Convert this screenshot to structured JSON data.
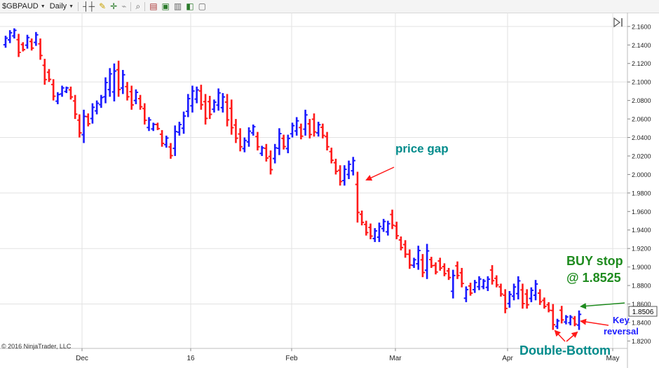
{
  "toolbar": {
    "instrument": "$GBPAUD",
    "interval": "Daily",
    "icons": [
      "bar-style-icon",
      "pencil-icon",
      "crosshair-icon",
      "magnet-icon",
      "zoom-icon",
      "properties-icon",
      "strategy-icon",
      "indicator-icon",
      "chart-trader-icon",
      "data-box-icon"
    ]
  },
  "copyright": "© 2016 NinjaTrader, LLC",
  "chart_data": {
    "type": "ohlc",
    "symbol": "$GBPAUD",
    "interval": "Daily",
    "x_tick_labels": [
      "Dec",
      "16",
      "Feb",
      "Mar",
      "Apr",
      "May"
    ],
    "y_tick_labels": [
      "2.1600",
      "2.1400",
      "2.1200",
      "2.1000",
      "2.0800",
      "2.0600",
      "2.0400",
      "2.0200",
      "2.0000",
      "1.9800",
      "1.9600",
      "1.9400",
      "1.9200",
      "1.9000",
      "1.8800",
      "1.8600",
      "1.8400",
      "1.8200"
    ],
    "ylim": [
      1.812,
      2.175
    ],
    "last_price_label": "1.8506",
    "colors": {
      "up": "#1a1aff",
      "down": "#ff1a1a",
      "grid": "#e2e2e2",
      "price_gap": "#008b8b",
      "buy_stop": "#1e8b1e",
      "key_reversal": "#1a1aff",
      "double_bottom": "#008b8b",
      "arrow_red": "#ff1a1a",
      "arrow_green": "#1e8b1e"
    },
    "annotations": [
      {
        "id": "price-gap",
        "text": "price gap"
      },
      {
        "id": "buy-stop",
        "lines": [
          "BUY stop",
          "@ 1.8525"
        ]
      },
      {
        "id": "key-reversal",
        "lines": [
          "Key",
          "reversal"
        ]
      },
      {
        "id": "double-bottom",
        "text": "Double-Bottom"
      }
    ],
    "bars": [
      {
        "h": 2.15,
        "l": 2.137,
        "dir": "up"
      },
      {
        "h": 2.156,
        "l": 2.142,
        "dir": "up"
      },
      {
        "h": 2.158,
        "l": 2.147,
        "dir": "up"
      },
      {
        "h": 2.152,
        "l": 2.127,
        "dir": "down"
      },
      {
        "h": 2.143,
        "l": 2.133,
        "dir": "down"
      },
      {
        "h": 2.151,
        "l": 2.136,
        "dir": "up"
      },
      {
        "h": 2.147,
        "l": 2.134,
        "dir": "down"
      },
      {
        "h": 2.154,
        "l": 2.139,
        "dir": "up"
      },
      {
        "h": 2.147,
        "l": 2.124,
        "dir": "down"
      },
      {
        "h": 2.125,
        "l": 2.097,
        "dir": "down"
      },
      {
        "h": 2.114,
        "l": 2.1,
        "dir": "down"
      },
      {
        "h": 2.103,
        "l": 2.08,
        "dir": "down"
      },
      {
        "h": 2.089,
        "l": 2.076,
        "dir": "up"
      },
      {
        "h": 2.096,
        "l": 2.084,
        "dir": "up"
      },
      {
        "h": 2.095,
        "l": 2.088,
        "dir": "up"
      },
      {
        "h": 2.095,
        "l": 2.081,
        "dir": "down"
      },
      {
        "h": 2.086,
        "l": 2.06,
        "dir": "down"
      },
      {
        "h": 2.065,
        "l": 2.04,
        "dir": "down"
      },
      {
        "h": 2.07,
        "l": 2.034,
        "dir": "up"
      },
      {
        "h": 2.066,
        "l": 2.052,
        "dir": "down"
      },
      {
        "h": 2.077,
        "l": 2.055,
        "dir": "up"
      },
      {
        "h": 2.08,
        "l": 2.065,
        "dir": "up"
      },
      {
        "h": 2.086,
        "l": 2.072,
        "dir": "up"
      },
      {
        "h": 2.105,
        "l": 2.077,
        "dir": "up"
      },
      {
        "h": 2.115,
        "l": 2.084,
        "dir": "up"
      },
      {
        "h": 2.12,
        "l": 2.079,
        "dir": "up"
      },
      {
        "h": 2.123,
        "l": 2.084,
        "dir": "down"
      },
      {
        "h": 2.113,
        "l": 2.087,
        "dir": "up"
      },
      {
        "h": 2.1,
        "l": 2.08,
        "dir": "down"
      },
      {
        "h": 2.096,
        "l": 2.07,
        "dir": "down"
      },
      {
        "h": 2.092,
        "l": 2.076,
        "dir": "up"
      },
      {
        "h": 2.086,
        "l": 2.07,
        "dir": "down"
      },
      {
        "h": 2.077,
        "l": 2.054,
        "dir": "down"
      },
      {
        "h": 2.062,
        "l": 2.047,
        "dir": "up"
      },
      {
        "h": 2.056,
        "l": 2.047,
        "dir": "up"
      },
      {
        "h": 2.056,
        "l": 2.048,
        "dir": "down"
      },
      {
        "h": 2.048,
        "l": 2.03,
        "dir": "down"
      },
      {
        "h": 2.042,
        "l": 2.029,
        "dir": "up"
      },
      {
        "h": 2.034,
        "l": 2.017,
        "dir": "down"
      },
      {
        "h": 2.053,
        "l": 2.02,
        "dir": "up"
      },
      {
        "h": 2.057,
        "l": 2.042,
        "dir": "up"
      },
      {
        "h": 2.068,
        "l": 2.044,
        "dir": "up"
      },
      {
        "h": 2.087,
        "l": 2.062,
        "dir": "up"
      },
      {
        "h": 2.096,
        "l": 2.067,
        "dir": "up"
      },
      {
        "h": 2.095,
        "l": 2.077,
        "dir": "up"
      },
      {
        "h": 2.097,
        "l": 2.07,
        "dir": "down"
      },
      {
        "h": 2.087,
        "l": 2.054,
        "dir": "down"
      },
      {
        "h": 2.085,
        "l": 2.06,
        "dir": "down"
      },
      {
        "h": 2.081,
        "l": 2.067,
        "dir": "up"
      },
      {
        "h": 2.093,
        "l": 2.069,
        "dir": "up"
      },
      {
        "h": 2.088,
        "l": 2.067,
        "dir": "up"
      },
      {
        "h": 2.087,
        "l": 2.052,
        "dir": "down"
      },
      {
        "h": 2.081,
        "l": 2.043,
        "dir": "down"
      },
      {
        "h": 2.06,
        "l": 2.034,
        "dir": "down"
      },
      {
        "h": 2.05,
        "l": 2.025,
        "dir": "down"
      },
      {
        "h": 2.04,
        "l": 2.024,
        "dir": "up"
      },
      {
        "h": 2.051,
        "l": 2.03,
        "dir": "up"
      },
      {
        "h": 2.054,
        "l": 2.042,
        "dir": "up"
      },
      {
        "h": 2.046,
        "l": 2.026,
        "dir": "down"
      },
      {
        "h": 2.031,
        "l": 2.02,
        "dir": "up"
      },
      {
        "h": 2.033,
        "l": 2.014,
        "dir": "down"
      },
      {
        "h": 2.026,
        "l": 2.0,
        "dir": "down"
      },
      {
        "h": 2.033,
        "l": 2.012,
        "dir": "up"
      },
      {
        "h": 2.05,
        "l": 2.021,
        "dir": "up"
      },
      {
        "h": 2.043,
        "l": 2.027,
        "dir": "down"
      },
      {
        "h": 2.043,
        "l": 2.023,
        "dir": "up"
      },
      {
        "h": 2.056,
        "l": 2.04,
        "dir": "up"
      },
      {
        "h": 2.062,
        "l": 2.042,
        "dir": "up"
      },
      {
        "h": 2.055,
        "l": 2.038,
        "dir": "down"
      },
      {
        "h": 2.07,
        "l": 2.042,
        "dir": "up"
      },
      {
        "h": 2.06,
        "l": 2.039,
        "dir": "down"
      },
      {
        "h": 2.066,
        "l": 2.041,
        "dir": "down"
      },
      {
        "h": 2.057,
        "l": 2.041,
        "dir": "up"
      },
      {
        "h": 2.055,
        "l": 2.039,
        "dir": "down"
      },
      {
        "h": 2.046,
        "l": 2.026,
        "dir": "down"
      },
      {
        "h": 2.029,
        "l": 2.012,
        "dir": "down"
      },
      {
        "h": 2.017,
        "l": 2.0,
        "dir": "down"
      },
      {
        "h": 2.01,
        "l": 1.988,
        "dir": "down"
      },
      {
        "h": 2.01,
        "l": 1.988,
        "dir": "up"
      },
      {
        "h": 2.015,
        "l": 1.995,
        "dir": "up"
      },
      {
        "h": 2.019,
        "l": 1.999,
        "dir": "up"
      },
      {
        "h": 2.003,
        "l": 1.948,
        "dir": "down"
      },
      {
        "h": 1.961,
        "l": 1.945,
        "dir": "down"
      },
      {
        "h": 1.95,
        "l": 1.934,
        "dir": "down"
      },
      {
        "h": 1.947,
        "l": 1.93,
        "dir": "down"
      },
      {
        "h": 1.942,
        "l": 1.927,
        "dir": "up"
      },
      {
        "h": 1.948,
        "l": 1.927,
        "dir": "up"
      },
      {
        "h": 1.952,
        "l": 1.938,
        "dir": "up"
      },
      {
        "h": 1.95,
        "l": 1.934,
        "dir": "up"
      },
      {
        "h": 1.962,
        "l": 1.941,
        "dir": "down"
      },
      {
        "h": 1.949,
        "l": 1.93,
        "dir": "down"
      },
      {
        "h": 1.933,
        "l": 1.918,
        "dir": "down"
      },
      {
        "h": 1.929,
        "l": 1.91,
        "dir": "down"
      },
      {
        "h": 1.919,
        "l": 1.898,
        "dir": "down"
      },
      {
        "h": 1.91,
        "l": 1.899,
        "dir": "up"
      },
      {
        "h": 1.923,
        "l": 1.897,
        "dir": "up"
      },
      {
        "h": 1.914,
        "l": 1.889,
        "dir": "down"
      },
      {
        "h": 1.925,
        "l": 1.887,
        "dir": "up"
      },
      {
        "h": 1.911,
        "l": 1.899,
        "dir": "down"
      },
      {
        "h": 1.905,
        "l": 1.892,
        "dir": "down"
      },
      {
        "h": 1.91,
        "l": 1.896,
        "dir": "down"
      },
      {
        "h": 1.904,
        "l": 1.89,
        "dir": "down"
      },
      {
        "h": 1.899,
        "l": 1.886,
        "dir": "down"
      },
      {
        "h": 1.897,
        "l": 1.866,
        "dir": "up"
      },
      {
        "h": 1.906,
        "l": 1.887,
        "dir": "down"
      },
      {
        "h": 1.899,
        "l": 1.878,
        "dir": "down"
      },
      {
        "h": 1.879,
        "l": 1.862,
        "dir": "up"
      },
      {
        "h": 1.883,
        "l": 1.869,
        "dir": "down"
      },
      {
        "h": 1.886,
        "l": 1.872,
        "dir": "up"
      },
      {
        "h": 1.89,
        "l": 1.875,
        "dir": "up"
      },
      {
        "h": 1.887,
        "l": 1.876,
        "dir": "up"
      },
      {
        "h": 1.89,
        "l": 1.874,
        "dir": "up"
      },
      {
        "h": 1.902,
        "l": 1.881,
        "dir": "down"
      },
      {
        "h": 1.891,
        "l": 1.878,
        "dir": "down"
      },
      {
        "h": 1.882,
        "l": 1.868,
        "dir": "down"
      },
      {
        "h": 1.876,
        "l": 1.85,
        "dir": "down"
      },
      {
        "h": 1.874,
        "l": 1.856,
        "dir": "up"
      },
      {
        "h": 1.882,
        "l": 1.864,
        "dir": "up"
      },
      {
        "h": 1.89,
        "l": 1.865,
        "dir": "up"
      },
      {
        "h": 1.882,
        "l": 1.855,
        "dir": "down"
      },
      {
        "h": 1.876,
        "l": 1.855,
        "dir": "down"
      },
      {
        "h": 1.878,
        "l": 1.862,
        "dir": "up"
      },
      {
        "h": 1.886,
        "l": 1.864,
        "dir": "up"
      },
      {
        "h": 1.876,
        "l": 1.859,
        "dir": "down"
      },
      {
        "h": 1.867,
        "l": 1.855,
        "dir": "down"
      },
      {
        "h": 1.862,
        "l": 1.851,
        "dir": "down"
      },
      {
        "h": 1.86,
        "l": 1.832,
        "dir": "down"
      },
      {
        "h": 1.844,
        "l": 1.833,
        "dir": "up"
      },
      {
        "h": 1.858,
        "l": 1.839,
        "dir": "down"
      },
      {
        "h": 1.848,
        "l": 1.838,
        "dir": "up"
      },
      {
        "h": 1.848,
        "l": 1.837,
        "dir": "up"
      },
      {
        "h": 1.847,
        "l": 1.836,
        "dir": "down"
      },
      {
        "h": 1.853,
        "l": 1.832,
        "dir": "up"
      }
    ]
  }
}
